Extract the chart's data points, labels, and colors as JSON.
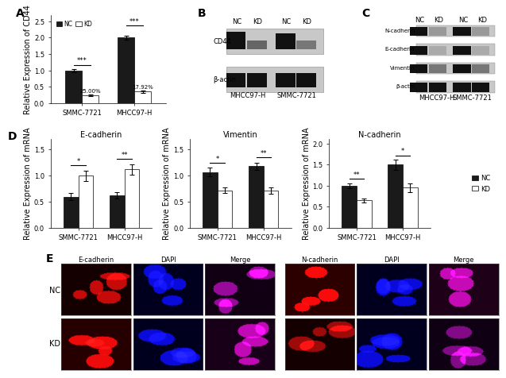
{
  "panel_A": {
    "title": "",
    "ylabel": "Relative Expression of CD44",
    "categories": [
      "SMMC-7721",
      "MHCC97-H"
    ],
    "NC_values": [
      1.0,
      2.0
    ],
    "KD_values": [
      0.25,
      0.358
    ],
    "NC_errors": [
      0.05,
      0.07
    ],
    "KD_errors": [
      0.02,
      0.03
    ],
    "NC_color": "#1a1a1a",
    "KD_color": "#ffffff",
    "ylim": [
      0,
      2.7
    ],
    "yticks": [
      0.0,
      0.5,
      1.0,
      1.5,
      2.0,
      2.5
    ],
    "pct_labels": [
      "25.00%",
      "17.92%"
    ],
    "sig_labels": [
      "***",
      "***"
    ]
  },
  "panel_D_Ecad": {
    "title": "E-cadherin",
    "ylabel": "Relative Expression of mRNA",
    "categories": [
      "SMMC-7721",
      "MHCC97-H"
    ],
    "NC_values": [
      0.6,
      0.62
    ],
    "KD_values": [
      1.0,
      1.12
    ],
    "NC_errors": [
      0.07,
      0.06
    ],
    "KD_errors": [
      0.1,
      0.1
    ],
    "NC_color": "#1a1a1a",
    "KD_color": "#ffffff",
    "ylim": [
      0,
      1.7
    ],
    "yticks": [
      0.0,
      0.5,
      1.0,
      1.5
    ],
    "sig_labels": [
      "*",
      "**"
    ]
  },
  "panel_D_Vim": {
    "title": "Vimentin",
    "ylabel": "Relative Expression of mRNA",
    "categories": [
      "SMMC-7721",
      "MHCC97-H"
    ],
    "NC_values": [
      1.07,
      1.18
    ],
    "KD_values": [
      0.72,
      0.72
    ],
    "NC_errors": [
      0.08,
      0.07
    ],
    "KD_errors": [
      0.05,
      0.06
    ],
    "NC_color": "#1a1a1a",
    "KD_color": "#ffffff",
    "ylim": [
      0,
      1.7
    ],
    "yticks": [
      0.0,
      0.5,
      1.0,
      1.5
    ],
    "sig_labels": [
      "*",
      "**"
    ]
  },
  "panel_D_Ncad": {
    "title": "N-cadherin",
    "ylabel": "Relative Expression of mRNA",
    "categories": [
      "SMMC-7721",
      "MHCC97-H"
    ],
    "NC_values": [
      1.0,
      1.5
    ],
    "KD_values": [
      0.65,
      0.95
    ],
    "NC_errors": [
      0.06,
      0.12
    ],
    "KD_errors": [
      0.05,
      0.1
    ],
    "NC_color": "#1a1a1a",
    "KD_color": "#ffffff",
    "ylim": [
      0,
      2.1
    ],
    "yticks": [
      0.0,
      0.5,
      1.0,
      1.5,
      2.0
    ],
    "sig_labels": [
      "**",
      "*"
    ]
  },
  "background_color": "#ffffff",
  "font_size": 7,
  "axis_label_size": 7,
  "tick_size": 6
}
